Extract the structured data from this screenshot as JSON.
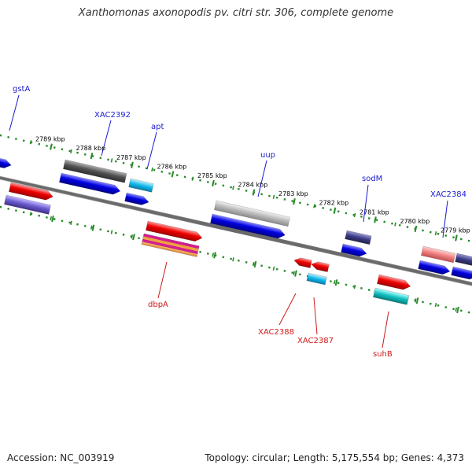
{
  "title": "Xanthomonas axonopodis pv. citri str. 306, complete genome",
  "footer": {
    "accession": "Accession: NC_003919",
    "summary": "Topology: circular; Length: 5,175,554 bp; Genes: 4,373"
  },
  "colors": {
    "backbone": "#7a7a7a",
    "ruler": "#2a8a2a",
    "forward_label": "#1a1ad0",
    "reverse_label": "#d01a1a",
    "red": "#ee0000",
    "blue": "#0000e0",
    "cyan": "#10b8e8",
    "teal": "#10c0c0",
    "dark_gray": "#505050",
    "light_gray": "#b8b8b8",
    "purple": "#6a5acd",
    "navy": "#3c3c88",
    "pink": "#f08080",
    "magenta_stripe": "#d02090",
    "orange_stripe": "#f0a040"
  },
  "ruler_ticks": [
    {
      "kbp": 2789,
      "label": "2789 kbp"
    },
    {
      "kbp": 2788,
      "label": "2788 kbp"
    },
    {
      "kbp": 2787,
      "label": "2787 kbp"
    },
    {
      "kbp": 2786,
      "label": "2786 kbp"
    },
    {
      "kbp": 2785,
      "label": "2785 kbp"
    },
    {
      "kbp": 2784,
      "label": "2784 kbp"
    },
    {
      "kbp": 2783,
      "label": "2783 kbp"
    },
    {
      "kbp": 2782,
      "label": "2782 kbp"
    },
    {
      "kbp": 2781,
      "label": "2781 kbp"
    },
    {
      "kbp": 2780,
      "label": "2780 kbp"
    },
    {
      "kbp": 2779,
      "label": "2779 kbp"
    }
  ],
  "gene_labels": [
    {
      "name": "gstA",
      "strand": "forward"
    },
    {
      "name": "XAC2392",
      "strand": "forward"
    },
    {
      "name": "apt",
      "strand": "forward"
    },
    {
      "name": "uup",
      "strand": "forward"
    },
    {
      "name": "sodM",
      "strand": "forward"
    },
    {
      "name": "XAC2384",
      "strand": "forward"
    },
    {
      "name": "dbpA",
      "strand": "reverse"
    },
    {
      "name": "XAC2388",
      "strand": "reverse"
    },
    {
      "name": "XAC2387",
      "strand": "reverse"
    },
    {
      "name": "suhB",
      "strand": "reverse"
    }
  ]
}
